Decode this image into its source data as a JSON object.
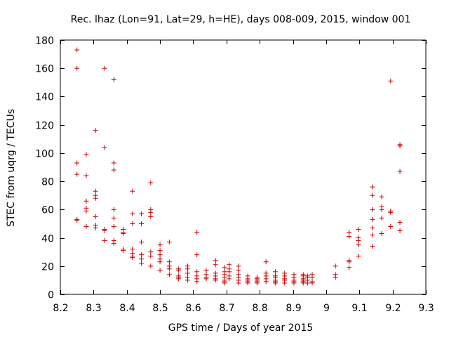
{
  "chart_data": {
    "type": "scatter",
    "title": "Rec. lhaz (Lon=91, Lat=29, h=HE), days 008-009, 2015, window 001",
    "xlabel": "GPS time / Days of year 2015",
    "ylabel": "STEC from uqrg / TECUs",
    "xlim": [
      8.2,
      9.3
    ],
    "ylim": [
      0,
      180
    ],
    "xticks": [
      8.2,
      8.3,
      8.4,
      8.5,
      8.6,
      8.7,
      8.8,
      8.9,
      9.0,
      9.1,
      9.2,
      9.3
    ],
    "xtick_labels": [
      "8.2",
      "8.3",
      "8.4",
      "8.5",
      "8.6",
      "8.7",
      "8.8",
      "8.9",
      "9",
      "9.1",
      "9.2",
      "9.3"
    ],
    "yticks": [
      0,
      20,
      40,
      60,
      80,
      100,
      120,
      140,
      160,
      180
    ],
    "ytick_labels": [
      "0",
      "20",
      "40",
      "60",
      "80",
      "100",
      "120",
      "140",
      "160",
      "180"
    ],
    "grid": false,
    "marker": "+",
    "color": "#cc0000",
    "series": [
      {
        "name": "STEC",
        "points": [
          [
            8.25,
            173
          ],
          [
            8.25,
            160
          ],
          [
            8.25,
            93
          ],
          [
            8.25,
            85
          ],
          [
            8.25,
            53
          ],
          [
            8.25,
            52.5
          ],
          [
            8.278,
            99
          ],
          [
            8.278,
            84
          ],
          [
            8.278,
            66
          ],
          [
            8.278,
            61
          ],
          [
            8.278,
            59
          ],
          [
            8.278,
            48
          ],
          [
            8.306,
            116
          ],
          [
            8.306,
            73
          ],
          [
            8.306,
            70
          ],
          [
            8.306,
            68
          ],
          [
            8.306,
            55
          ],
          [
            8.306,
            49
          ],
          [
            8.306,
            47
          ],
          [
            8.333,
            160
          ],
          [
            8.333,
            104
          ],
          [
            8.333,
            46
          ],
          [
            8.333,
            45
          ],
          [
            8.333,
            38
          ],
          [
            8.361,
            152
          ],
          [
            8.361,
            93
          ],
          [
            8.361,
            88
          ],
          [
            8.361,
            60
          ],
          [
            8.361,
            54
          ],
          [
            8.361,
            48
          ],
          [
            8.361,
            38
          ],
          [
            8.361,
            36
          ],
          [
            8.389,
            46
          ],
          [
            8.389,
            44
          ],
          [
            8.389,
            43
          ],
          [
            8.389,
            32
          ],
          [
            8.389,
            31
          ],
          [
            8.417,
            73
          ],
          [
            8.417,
            57
          ],
          [
            8.417,
            50
          ],
          [
            8.417,
            32
          ],
          [
            8.417,
            29
          ],
          [
            8.417,
            27
          ],
          [
            8.417,
            26
          ],
          [
            8.444,
            57
          ],
          [
            8.444,
            50
          ],
          [
            8.444,
            37
          ],
          [
            8.444,
            28
          ],
          [
            8.444,
            25
          ],
          [
            8.444,
            22
          ],
          [
            8.472,
            79
          ],
          [
            8.472,
            60
          ],
          [
            8.472,
            58
          ],
          [
            8.472,
            55
          ],
          [
            8.472,
            30
          ],
          [
            8.472,
            27
          ],
          [
            8.472,
            20
          ],
          [
            8.5,
            35
          ],
          [
            8.5,
            31
          ],
          [
            8.5,
            28
          ],
          [
            8.5,
            25
          ],
          [
            8.5,
            23
          ],
          [
            8.5,
            17
          ],
          [
            8.528,
            37
          ],
          [
            8.528,
            23
          ],
          [
            8.528,
            20
          ],
          [
            8.528,
            18
          ],
          [
            8.528,
            14
          ],
          [
            8.556,
            18
          ],
          [
            8.556,
            17
          ],
          [
            8.556,
            13
          ],
          [
            8.556,
            12
          ],
          [
            8.556,
            11
          ],
          [
            8.583,
            20
          ],
          [
            8.583,
            18
          ],
          [
            8.583,
            15
          ],
          [
            8.583,
            12
          ],
          [
            8.583,
            10
          ],
          [
            8.611,
            44
          ],
          [
            8.611,
            28
          ],
          [
            8.611,
            16
          ],
          [
            8.611,
            13
          ],
          [
            8.611,
            11
          ],
          [
            8.611,
            9
          ],
          [
            8.639,
            17
          ],
          [
            8.639,
            14
          ],
          [
            8.639,
            12
          ],
          [
            8.639,
            11
          ],
          [
            8.667,
            24
          ],
          [
            8.667,
            21
          ],
          [
            8.667,
            15
          ],
          [
            8.667,
            13
          ],
          [
            8.667,
            11
          ],
          [
            8.667,
            10
          ],
          [
            8.694,
            19
          ],
          [
            8.694,
            16
          ],
          [
            8.694,
            14
          ],
          [
            8.694,
            12
          ],
          [
            8.694,
            10
          ],
          [
            8.694,
            9
          ],
          [
            8.694,
            8
          ],
          [
            8.708,
            21
          ],
          [
            8.708,
            18
          ],
          [
            8.708,
            16
          ],
          [
            8.708,
            13
          ],
          [
            8.708,
            11
          ],
          [
            8.736,
            20
          ],
          [
            8.736,
            17
          ],
          [
            8.736,
            14
          ],
          [
            8.736,
            12
          ],
          [
            8.736,
            10
          ],
          [
            8.736,
            8
          ],
          [
            8.764,
            13
          ],
          [
            8.764,
            11
          ],
          [
            8.764,
            10
          ],
          [
            8.764,
            9
          ],
          [
            8.764,
            8
          ],
          [
            8.792,
            12
          ],
          [
            8.792,
            11
          ],
          [
            8.792,
            10
          ],
          [
            8.792,
            9
          ],
          [
            8.792,
            8
          ],
          [
            8.819,
            23
          ],
          [
            8.819,
            15
          ],
          [
            8.819,
            13
          ],
          [
            8.819,
            11
          ],
          [
            8.819,
            9
          ],
          [
            8.847,
            16
          ],
          [
            8.847,
            13
          ],
          [
            8.847,
            12
          ],
          [
            8.847,
            10
          ],
          [
            8.847,
            9
          ],
          [
            8.847,
            8
          ],
          [
            8.875,
            15
          ],
          [
            8.875,
            13
          ],
          [
            8.875,
            11
          ],
          [
            8.875,
            10
          ],
          [
            8.875,
            8
          ],
          [
            8.903,
            14
          ],
          [
            8.903,
            12
          ],
          [
            8.903,
            10
          ],
          [
            8.903,
            9
          ],
          [
            8.903,
            8
          ],
          [
            8.931,
            14
          ],
          [
            8.931,
            13
          ],
          [
            8.931,
            11
          ],
          [
            8.931,
            10
          ],
          [
            8.931,
            9
          ],
          [
            8.931,
            8
          ],
          [
            8.944,
            13
          ],
          [
            8.944,
            12
          ],
          [
            8.944,
            10
          ],
          [
            8.944,
            8
          ],
          [
            8.958,
            14
          ],
          [
            8.958,
            12
          ],
          [
            8.958,
            9
          ],
          [
            8.958,
            8
          ],
          [
            9.028,
            20
          ],
          [
            9.028,
            14
          ],
          [
            9.028,
            12
          ],
          [
            9.069,
            44
          ],
          [
            9.069,
            41
          ],
          [
            9.069,
            24
          ],
          [
            9.069,
            23
          ],
          [
            9.069,
            19
          ],
          [
            9.097,
            46
          ],
          [
            9.097,
            40
          ],
          [
            9.097,
            38
          ],
          [
            9.097,
            35
          ],
          [
            9.097,
            27
          ],
          [
            9.139,
            76
          ],
          [
            9.139,
            70
          ],
          [
            9.139,
            60
          ],
          [
            9.139,
            53
          ],
          [
            9.139,
            47
          ],
          [
            9.139,
            42
          ],
          [
            9.139,
            34
          ],
          [
            9.167,
            69
          ],
          [
            9.167,
            62
          ],
          [
            9.167,
            60
          ],
          [
            9.167,
            54
          ],
          [
            9.167,
            43
          ],
          [
            9.194,
            151
          ],
          [
            9.194,
            59
          ],
          [
            9.194,
            58
          ],
          [
            9.194,
            48
          ],
          [
            9.222,
            106
          ],
          [
            9.222,
            105
          ],
          [
            9.222,
            87
          ],
          [
            9.222,
            51
          ],
          [
            9.222,
            45
          ]
        ]
      }
    ]
  }
}
